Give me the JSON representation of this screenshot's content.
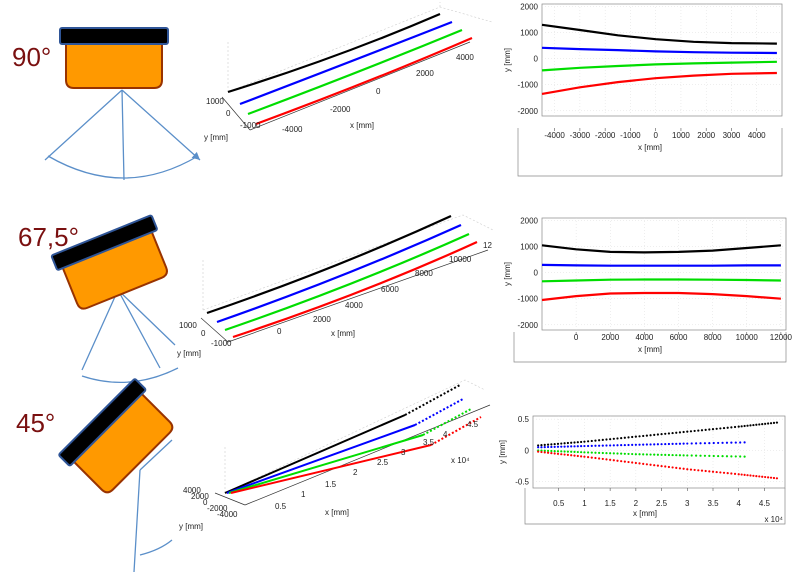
{
  "angles": [
    "90°",
    "67,5°",
    "45°"
  ],
  "colors": {
    "sensor_body": "#FF9900",
    "sensor_outline": "#993300",
    "sensor_cap": "#000000",
    "cap_outline": "#2f5597",
    "beam": "#5b8fc9",
    "angle_text": "#7a1010",
    "series": [
      "#000000",
      "#0000ff",
      "#00dd00",
      "#ff0000"
    ]
  },
  "rows": [
    {
      "p3d": {
        "x_ticks": [
          "-4000",
          "-2000",
          "0",
          "2000",
          "4000"
        ],
        "y_ticks": [
          "1000",
          "0",
          "-1000"
        ],
        "xlabel": "x [mm]",
        "ylabel": "y [mm]"
      },
      "p2d": {
        "x_ticks": [
          "-4000",
          "-3000",
          "-2000",
          "-1000",
          "0",
          "1000",
          "2000",
          "3000",
          "4000"
        ],
        "y_ticks": [
          "2000",
          "1000",
          "0",
          "-1000",
          "-2000"
        ],
        "xlabel": "x [mm]",
        "ylabel": "y [mm]",
        "x_mult": ""
      }
    },
    {
      "p3d": {
        "x_ticks": [
          "0",
          "2000",
          "4000",
          "6000",
          "8000",
          "10000",
          "12"
        ],
        "y_ticks": [
          "1000",
          "0",
          "-1000"
        ],
        "xlabel": "x [mm]",
        "ylabel": "y [mm]"
      },
      "p2d": {
        "x_ticks": [
          "0",
          "2000",
          "4000",
          "6000",
          "8000",
          "10000",
          "12000"
        ],
        "y_ticks": [
          "2000",
          "1000",
          "0",
          "-1000",
          "-2000"
        ],
        "xlabel": "x [mm]",
        "ylabel": "y [mm]",
        "x_mult": ""
      }
    },
    {
      "p3d": {
        "x_ticks": [
          "0.5",
          "1",
          "1.5",
          "2",
          "2.5",
          "3",
          "3.5",
          "4",
          "4.5"
        ],
        "y_ticks": [
          "4000",
          "2000",
          "0",
          "-2000",
          "-4000"
        ],
        "xlabel": "x [mm]",
        "ylabel": "y [mm]",
        "x_mult": "x 10⁴"
      },
      "p2d": {
        "x_ticks": [
          "0.5",
          "1",
          "1.5",
          "2",
          "2.5",
          "3",
          "3.5",
          "4",
          "4.5"
        ],
        "y_ticks": [
          "0.5",
          "0",
          "-0.5"
        ],
        "xlabel": "x [mm]",
        "ylabel": "y [mm]",
        "x_mult": "x 10⁴"
      }
    }
  ],
  "chart_data": [
    {
      "type": "line",
      "row": "90°",
      "view": "top",
      "xlim": [
        -4500,
        5000
      ],
      "ylim": [
        -2200,
        2100
      ],
      "series": [
        {
          "x": [
            -4500,
            -3000,
            -1500,
            0,
            1500,
            3000,
            4800
          ],
          "values": [
            1300,
            1100,
            900,
            750,
            650,
            600,
            580
          ]
        },
        {
          "x": [
            -4500,
            -3000,
            -1500,
            0,
            1500,
            3000,
            4800
          ],
          "values": [
            420,
            370,
            330,
            280,
            250,
            230,
            220
          ]
        },
        {
          "x": [
            -4500,
            -3000,
            -1500,
            0,
            1500,
            3000,
            4800
          ],
          "values": [
            -450,
            -350,
            -280,
            -220,
            -180,
            -150,
            -120
          ]
        },
        {
          "x": [
            -4500,
            -3000,
            -1500,
            0,
            1500,
            3000,
            4800
          ],
          "values": [
            -1350,
            -1100,
            -900,
            -750,
            -650,
            -580,
            -550
          ]
        }
      ]
    },
    {
      "type": "line",
      "row": "67,5°",
      "view": "top",
      "xlim": [
        -2000,
        12300
      ],
      "ylim": [
        -2200,
        2100
      ],
      "series": [
        {
          "x": [
            -2000,
            0,
            2000,
            4000,
            6000,
            8000,
            10000,
            12000
          ],
          "values": [
            1050,
            900,
            800,
            780,
            800,
            850,
            950,
            1050
          ]
        },
        {
          "x": [
            -2000,
            0,
            2000,
            4000,
            6000,
            8000,
            10000,
            12000
          ],
          "values": [
            300,
            280,
            270,
            270,
            270,
            270,
            280,
            280
          ]
        },
        {
          "x": [
            -2000,
            0,
            2000,
            4000,
            6000,
            8000,
            10000,
            12000
          ],
          "values": [
            -330,
            -300,
            -270,
            -260,
            -260,
            -270,
            -280,
            -300
          ]
        },
        {
          "x": [
            -2000,
            0,
            2000,
            4000,
            6000,
            8000,
            10000,
            12000
          ],
          "values": [
            -1050,
            -900,
            -800,
            -780,
            -780,
            -820,
            -900,
            -1000
          ]
        }
      ]
    },
    {
      "type": "scatter",
      "row": "45°",
      "view": "top",
      "x_multiplier": "x 10^4",
      "xlim": [
        0,
        4.9
      ],
      "ylim": [
        -0.6,
        0.55
      ],
      "series": [
        {
          "x": [
            0.1,
            1.0,
            2.0,
            3.0,
            4.0,
            4.8
          ],
          "values": [
            0.08,
            0.14,
            0.22,
            0.3,
            0.38,
            0.45
          ]
        },
        {
          "x": [
            0.1,
            1.0,
            2.0,
            3.0,
            4.2
          ],
          "values": [
            0.05,
            0.07,
            0.09,
            0.11,
            0.13
          ]
        },
        {
          "x": [
            0.1,
            1.0,
            2.0,
            3.0,
            4.2
          ],
          "values": [
            0.0,
            -0.03,
            -0.06,
            -0.08,
            -0.1
          ]
        },
        {
          "x": [
            0.1,
            1.0,
            2.0,
            3.0,
            4.0,
            4.8
          ],
          "values": [
            -0.02,
            -0.1,
            -0.2,
            -0.3,
            -0.38,
            -0.45
          ]
        }
      ]
    }
  ]
}
